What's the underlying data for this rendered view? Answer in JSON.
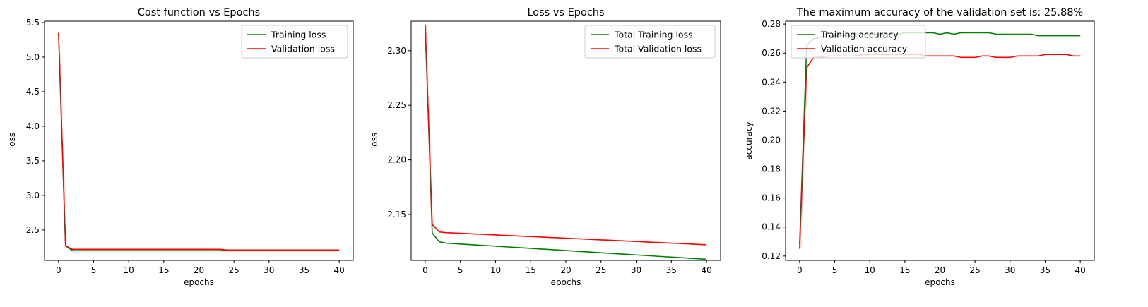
{
  "chart_data": [
    {
      "type": "line",
      "title": "Cost function vs Epochs",
      "xlabel": "epochs",
      "ylabel": "loss",
      "xlim": [
        -2,
        42
      ],
      "ylim": [
        2.06,
        5.52
      ],
      "xticks": [
        0,
        5,
        10,
        15,
        20,
        25,
        30,
        35,
        40
      ],
      "yticks": [
        2.5,
        3.0,
        3.5,
        4.0,
        4.5,
        5.0,
        5.5
      ],
      "ytick_decimals": 1,
      "legend_position": "upper-right",
      "grid": false,
      "x": [
        0,
        1,
        2,
        3,
        4,
        5,
        6,
        7,
        8,
        9,
        10,
        11,
        12,
        13,
        14,
        15,
        16,
        17,
        18,
        19,
        20,
        21,
        22,
        23,
        24,
        25,
        26,
        27,
        28,
        29,
        30,
        31,
        32,
        33,
        34,
        35,
        36,
        37,
        38,
        39,
        40
      ],
      "series": [
        {
          "name": "Training loss",
          "color": "#008000",
          "values": [
            5.35,
            2.27,
            2.2,
            2.2,
            2.2,
            2.2,
            2.2,
            2.2,
            2.2,
            2.2,
            2.2,
            2.2,
            2.2,
            2.2,
            2.2,
            2.2,
            2.2,
            2.2,
            2.2,
            2.2,
            2.2,
            2.2,
            2.2,
            2.2,
            2.2,
            2.2,
            2.2,
            2.2,
            2.2,
            2.2,
            2.2,
            2.2,
            2.2,
            2.2,
            2.2,
            2.2,
            2.2,
            2.2,
            2.2,
            2.2,
            2.2
          ]
        },
        {
          "name": "Validation loss",
          "color": "#ff0000",
          "values": [
            5.35,
            2.27,
            2.22,
            2.22,
            2.22,
            2.22,
            2.22,
            2.22,
            2.22,
            2.22,
            2.22,
            2.22,
            2.22,
            2.22,
            2.22,
            2.22,
            2.22,
            2.22,
            2.22,
            2.22,
            2.22,
            2.22,
            2.22,
            2.22,
            2.21,
            2.21,
            2.21,
            2.21,
            2.21,
            2.21,
            2.21,
            2.21,
            2.21,
            2.21,
            2.21,
            2.21,
            2.21,
            2.21,
            2.21,
            2.21,
            2.21
          ]
        }
      ]
    },
    {
      "type": "line",
      "title": "Loss vs Epochs",
      "xlabel": "epochs",
      "ylabel": "loss",
      "xlim": [
        -2,
        42
      ],
      "ylim": [
        2.108,
        2.327
      ],
      "xticks": [
        0,
        5,
        10,
        15,
        20,
        25,
        30,
        35,
        40
      ],
      "yticks": [
        2.15,
        2.2,
        2.25,
        2.3
      ],
      "ytick_decimals": 2,
      "legend_position": "upper-right",
      "grid": false,
      "x": [
        0,
        1,
        2,
        3,
        4,
        5,
        6,
        7,
        8,
        9,
        10,
        11,
        12,
        13,
        14,
        15,
        16,
        17,
        18,
        19,
        20,
        21,
        22,
        23,
        24,
        25,
        26,
        27,
        28,
        29,
        30,
        31,
        32,
        33,
        34,
        35,
        36,
        37,
        38,
        39,
        40
      ],
      "series": [
        {
          "name": "Total Training loss",
          "color": "#008000",
          "values": [
            2.324,
            2.133,
            2.125,
            2.1238,
            2.1234,
            2.123,
            2.1226,
            2.1222,
            2.1218,
            2.1214,
            2.121,
            2.1206,
            2.1202,
            2.1198,
            2.1194,
            2.119,
            2.1186,
            2.1182,
            2.1178,
            2.1174,
            2.117,
            2.1166,
            2.1162,
            2.1158,
            2.1154,
            2.115,
            2.1146,
            2.1142,
            2.1138,
            2.1134,
            2.113,
            2.1126,
            2.1122,
            2.1118,
            2.1114,
            2.111,
            2.1106,
            2.1102,
            2.1098,
            2.1094,
            2.109
          ]
        },
        {
          "name": "Total Validation loss",
          "color": "#ff0000",
          "values": [
            2.323,
            2.141,
            2.134,
            2.1334,
            2.1331,
            2.1328,
            2.1325,
            2.1322,
            2.1319,
            2.1316,
            2.1313,
            2.131,
            2.1307,
            2.1304,
            2.1301,
            2.1298,
            2.1295,
            2.1292,
            2.1289,
            2.1286,
            2.1283,
            2.128,
            2.1277,
            2.1274,
            2.1271,
            2.1268,
            2.1265,
            2.1262,
            2.1259,
            2.1256,
            2.1253,
            2.125,
            2.1247,
            2.1244,
            2.1241,
            2.1238,
            2.1235,
            2.1232,
            2.1229,
            2.1226,
            2.1223
          ]
        }
      ]
    },
    {
      "type": "line",
      "title": "The maximum accuracy of the validation set is: 25.88%",
      "xlabel": "epochs",
      "ylabel": "accuracy",
      "xlim": [
        -2,
        42
      ],
      "ylim": [
        0.117,
        0.282
      ],
      "xticks": [
        0,
        5,
        10,
        15,
        20,
        25,
        30,
        35,
        40
      ],
      "yticks": [
        0.12,
        0.14,
        0.16,
        0.18,
        0.2,
        0.22,
        0.24,
        0.26,
        0.28
      ],
      "ytick_decimals": 2,
      "legend_position": "upper-left",
      "grid": false,
      "x": [
        0,
        1,
        2,
        3,
        4,
        5,
        6,
        7,
        8,
        9,
        10,
        11,
        12,
        13,
        14,
        15,
        16,
        17,
        18,
        19,
        20,
        21,
        22,
        23,
        24,
        25,
        26,
        27,
        28,
        29,
        30,
        31,
        32,
        33,
        34,
        35,
        36,
        37,
        38,
        39,
        40
      ],
      "series": [
        {
          "name": "Training accuracy",
          "color": "#008000",
          "values": [
            0.128,
            0.265,
            0.27,
            0.271,
            0.271,
            0.272,
            0.272,
            0.272,
            0.273,
            0.273,
            0.273,
            0.273,
            0.273,
            0.273,
            0.273,
            0.274,
            0.274,
            0.274,
            0.274,
            0.274,
            0.273,
            0.274,
            0.273,
            0.274,
            0.274,
            0.274,
            0.274,
            0.274,
            0.273,
            0.273,
            0.273,
            0.273,
            0.273,
            0.273,
            0.272,
            0.272,
            0.272,
            0.272,
            0.272,
            0.272,
            0.272
          ]
        },
        {
          "name": "Validation accuracy",
          "color": "#ff0000",
          "values": [
            0.125,
            0.25,
            0.257,
            0.257,
            0.258,
            0.258,
            0.258,
            0.258,
            0.258,
            0.259,
            0.259,
            0.259,
            0.259,
            0.259,
            0.259,
            0.259,
            0.259,
            0.259,
            0.258,
            0.258,
            0.258,
            0.258,
            0.258,
            0.257,
            0.257,
            0.257,
            0.258,
            0.258,
            0.257,
            0.257,
            0.257,
            0.258,
            0.258,
            0.258,
            0.258,
            0.259,
            0.259,
            0.259,
            0.259,
            0.258,
            0.258
          ]
        }
      ]
    }
  ]
}
